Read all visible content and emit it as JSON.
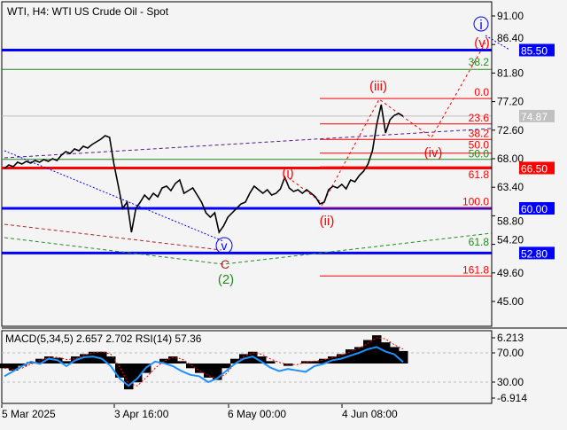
{
  "header": {
    "title": "WTI, H4:  WTI US Crude Oil - Spot"
  },
  "indicator_label": "MACD(5,34,5) 2.657 2.702 RSI(14) 57.36",
  "price_axis": [
    "91.00",
    "86.40",
    "81.80",
    "77.20",
    "72.60",
    "68.00",
    "63.40",
    "58.80",
    "54.20",
    "49.60",
    "45.00"
  ],
  "price_tags": {
    "p85_50": "85.50",
    "last": "74.87",
    "p66_50": "66.50",
    "p60_00": "60.00",
    "p52_80": "52.80"
  },
  "indicator_axis": [
    "6.213",
    "70.00",
    "30.00",
    "-6.914"
  ],
  "time_axis": [
    "5 Mar 2025",
    "3 Apr 16:00",
    "6 May 00:00",
    "4 Jun 08:00"
  ],
  "fib_red": [
    {
      "label": "0.0",
      "price": 77.7
    },
    {
      "label": "23.6",
      "price": 73.6
    },
    {
      "label": "38.2",
      "price": 71.1
    },
    {
      "label": "50.0",
      "price": 68.9
    },
    {
      "label": "61.8",
      "price": 66.7
    },
    {
      "label": "100.0",
      "price": 60.1
    },
    {
      "label": "161.8",
      "price": 49.1
    }
  ],
  "fib_green": [
    {
      "label": "38.2",
      "price": 82.4
    },
    {
      "label": "50.0",
      "price": 67.9
    },
    {
      "label": "61.8",
      "price": 53.7
    }
  ],
  "wave_labels": {
    "i": "(i)",
    "ii": "(ii)",
    "iii": "(iii)",
    "iv": "(iv)",
    "v": "(v)",
    "major_i": "i",
    "minor_v": "v",
    "c": "C",
    "two": "(2)"
  },
  "colors": {
    "support_blue": "#0000ff",
    "resistance_red": "#ff0000",
    "fib_green": "#228b22",
    "price": "#000000",
    "rsi": "#1e90ff",
    "tag_last": "#c0c0c0"
  },
  "chart_data": {
    "type": "line",
    "symbol": "WTI",
    "timeframe": "H4",
    "ylim": [
      43,
      92
    ],
    "price": [
      66.43,
      67.0,
      66.71,
      67.43,
      67.14,
      67.57,
      67.29,
      67.71,
      67.43,
      67.86,
      67.57,
      68.0,
      67.71,
      68.57,
      69.14,
      68.86,
      69.57,
      69.29,
      70.0,
      69.71,
      70.29,
      70.71,
      71.14,
      71.71,
      71.43,
      67.14,
      63.57,
      60.0,
      61.0,
      56.14,
      60.0,
      61.0,
      62.14,
      61.43,
      62.43,
      61.86,
      63.29,
      63.57,
      62.86,
      64.0,
      64.57,
      62.43,
      62.86,
      63.29,
      62.14,
      61.0,
      59.29,
      58.57,
      59.29,
      56.14,
      57.14,
      58.57,
      59.29,
      60.0,
      60.71,
      61.0,
      62.43,
      63.57,
      63.0,
      62.43,
      63.0,
      62.14,
      62.43,
      63.14,
      65.0,
      63.29,
      62.71,
      63.0,
      62.43,
      63.0,
      62.43,
      61.86,
      60.71,
      61.0,
      63.0,
      63.57,
      63.29,
      63.86,
      63.14,
      64.57,
      64.29,
      65.29,
      66.0,
      67.14,
      69.29,
      73.57,
      76.71,
      72.14,
      74.29,
      75.0,
      75.29,
      74.87
    ],
    "macd": [
      -1,
      -1.5,
      -0.5,
      0.3,
      1,
      1.5,
      1.2,
      0.5,
      1.5,
      2,
      2.5,
      2.5,
      1.5,
      -3,
      -5.5,
      -4,
      -2,
      0,
      1,
      1.5,
      0.5,
      -1,
      -2,
      -3,
      -3.5,
      -1,
      1,
      2,
      2.5,
      1.5,
      0.5,
      0,
      -0.5,
      0,
      0.5,
      0.5,
      1,
      1.5,
      2,
      3,
      3.5,
      5,
      6,
      4.5,
      3.5,
      2.657
    ],
    "rsi": [
      38,
      45,
      52,
      58,
      55,
      62,
      60,
      52,
      60,
      64,
      65,
      62,
      52,
      35,
      25,
      35,
      50,
      58,
      56,
      52,
      45,
      40,
      38,
      30,
      35,
      45,
      55,
      62,
      65,
      58,
      50,
      45,
      48,
      46,
      44,
      52,
      55,
      60,
      62,
      66,
      70,
      75,
      78,
      72,
      68,
      57.36
    ],
    "levels": [
      85.5,
      66.5,
      60.0,
      52.8
    ],
    "last_price": 74.87
  }
}
